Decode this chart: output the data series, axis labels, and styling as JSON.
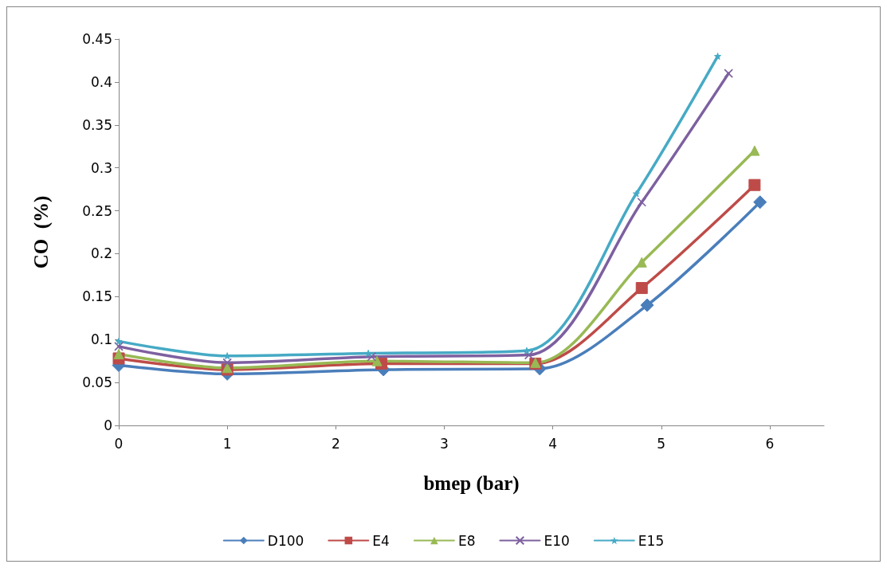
{
  "chart_data": {
    "type": "line",
    "xlabel": "bmep (bar)",
    "ylabel": "CO  (%)",
    "xlim": [
      0,
      6.5
    ],
    "xticks": [
      0,
      1,
      2,
      3,
      4,
      5,
      6
    ],
    "ylim": [
      0,
      0.45
    ],
    "yticks": [
      0,
      0.05,
      0.1,
      0.15,
      0.2,
      0.25,
      0.3,
      0.35,
      0.4,
      0.45
    ],
    "grid": false,
    "legend": "bottom",
    "series": [
      {
        "name": "D100",
        "color": "#4a7ebb",
        "marker": "diamond",
        "x": [
          0,
          1,
          2.44,
          3.88,
          4.87,
          5.91
        ],
        "values": [
          0.07,
          0.06,
          0.065,
          0.066,
          0.14,
          0.26
        ]
      },
      {
        "name": "E4",
        "color": "#be4b48",
        "marker": "square",
        "x": [
          0,
          1,
          2.42,
          3.84,
          4.82,
          5.86
        ],
        "values": [
          0.078,
          0.065,
          0.072,
          0.072,
          0.16,
          0.28
        ]
      },
      {
        "name": "E8",
        "color": "#98b954",
        "marker": "triangle",
        "x": [
          0,
          1,
          2.38,
          3.84,
          4.82,
          5.86
        ],
        "values": [
          0.083,
          0.067,
          0.075,
          0.073,
          0.19,
          0.32
        ]
      },
      {
        "name": "E10",
        "color": "#7d60a0",
        "marker": "cross",
        "x": [
          0,
          1,
          2.33,
          3.78,
          4.82,
          5.62
        ],
        "values": [
          0.092,
          0.073,
          0.08,
          0.082,
          0.26,
          0.41
        ]
      },
      {
        "name": "E15",
        "color": "#46aac5",
        "marker": "star",
        "x": [
          0,
          1,
          2.3,
          3.76,
          4.77,
          5.52
        ],
        "values": [
          0.098,
          0.081,
          0.084,
          0.087,
          0.27,
          0.43
        ]
      }
    ]
  }
}
